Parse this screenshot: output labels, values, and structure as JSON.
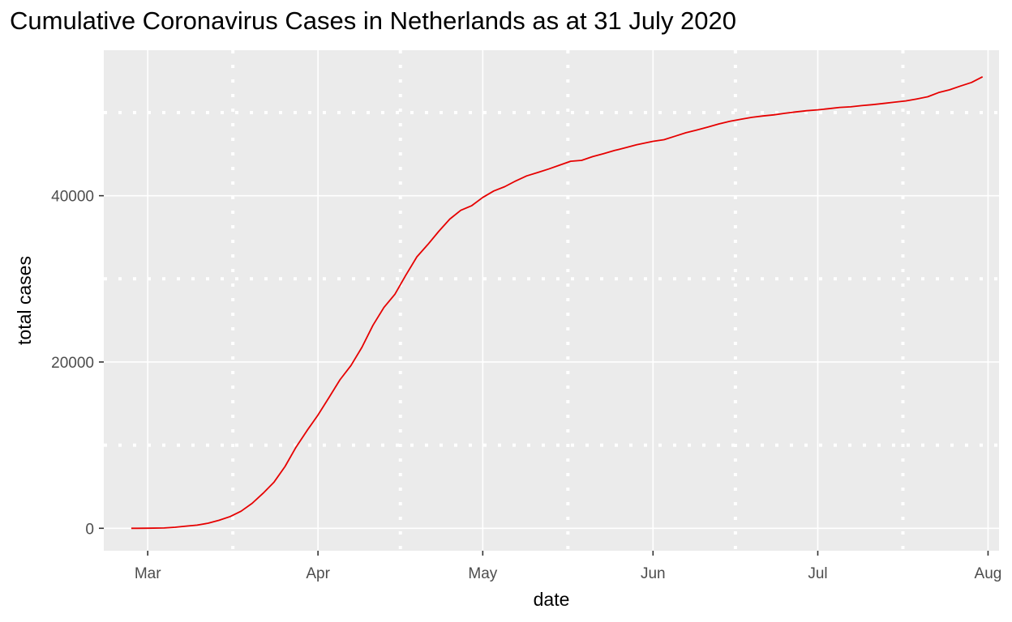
{
  "chart_data": {
    "type": "line",
    "title": "Cumulative Coronavirus Cases in Netherlands as at 31 July 2020",
    "xlabel": "date",
    "ylabel": "total cases",
    "xlim": [
      "2020-02-22",
      "2020-08-03"
    ],
    "ylim": [
      -2700,
      57500
    ],
    "grid": true,
    "x_ticks": [
      {
        "date": "2020-03-01",
        "label": "Mar"
      },
      {
        "date": "2020-04-01",
        "label": "Apr"
      },
      {
        "date": "2020-05-01",
        "label": "May"
      },
      {
        "date": "2020-06-01",
        "label": "Jun"
      },
      {
        "date": "2020-07-01",
        "label": "Jul"
      },
      {
        "date": "2020-08-01",
        "label": "Aug"
      }
    ],
    "y_ticks": [
      {
        "value": 0,
        "label": "0"
      },
      {
        "value": 20000,
        "label": "20000"
      },
      {
        "value": 40000,
        "label": "40000"
      }
    ],
    "series": [
      {
        "color": "#e60000",
        "points": [
          [
            "2020-02-27",
            1
          ],
          [
            "2020-02-28",
            2
          ],
          [
            "2020-03-01",
            10
          ],
          [
            "2020-03-04",
            38
          ],
          [
            "2020-03-06",
            128
          ],
          [
            "2020-03-08",
            265
          ],
          [
            "2020-03-10",
            382
          ],
          [
            "2020-03-12",
            614
          ],
          [
            "2020-03-14",
            959
          ],
          [
            "2020-03-16",
            1413
          ],
          [
            "2020-03-18",
            2051
          ],
          [
            "2020-03-20",
            2994
          ],
          [
            "2020-03-22",
            4204
          ],
          [
            "2020-03-24",
            5560
          ],
          [
            "2020-03-26",
            7431
          ],
          [
            "2020-03-28",
            9762
          ],
          [
            "2020-03-30",
            11750
          ],
          [
            "2020-04-01",
            13614
          ],
          [
            "2020-04-03",
            15723
          ],
          [
            "2020-04-05",
            17851
          ],
          [
            "2020-04-07",
            19580
          ],
          [
            "2020-04-09",
            21762
          ],
          [
            "2020-04-11",
            24413
          ],
          [
            "2020-04-13",
            26551
          ],
          [
            "2020-04-15",
            28153
          ],
          [
            "2020-04-17",
            30449
          ],
          [
            "2020-04-19",
            32655
          ],
          [
            "2020-04-21",
            34134
          ],
          [
            "2020-04-23",
            35729
          ],
          [
            "2020-04-25",
            37190
          ],
          [
            "2020-04-27",
            38245
          ],
          [
            "2020-04-29",
            38802
          ],
          [
            "2020-05-01",
            39791
          ],
          [
            "2020-05-03",
            40571
          ],
          [
            "2020-05-05",
            41087
          ],
          [
            "2020-05-07",
            41774
          ],
          [
            "2020-05-09",
            42382
          ],
          [
            "2020-05-11",
            42788
          ],
          [
            "2020-05-13",
            43211
          ],
          [
            "2020-05-15",
            43681
          ],
          [
            "2020-05-17",
            44141
          ],
          [
            "2020-05-19",
            44249
          ],
          [
            "2020-05-21",
            44700
          ],
          [
            "2020-05-23",
            45064
          ],
          [
            "2020-05-25",
            45445
          ],
          [
            "2020-05-27",
            45768
          ],
          [
            "2020-05-29",
            46126
          ],
          [
            "2020-06-01",
            46545
          ],
          [
            "2020-06-03",
            46733
          ],
          [
            "2020-06-05",
            47152
          ],
          [
            "2020-06-07",
            47574
          ],
          [
            "2020-06-09",
            47903
          ],
          [
            "2020-06-11",
            48251
          ],
          [
            "2020-06-13",
            48640
          ],
          [
            "2020-06-15",
            48948
          ],
          [
            "2020-06-17",
            49204
          ],
          [
            "2020-06-19",
            49426
          ],
          [
            "2020-06-21",
            49593
          ],
          [
            "2020-06-23",
            49722
          ],
          [
            "2020-06-25",
            49914
          ],
          [
            "2020-06-27",
            50074
          ],
          [
            "2020-06-29",
            50223
          ],
          [
            "2020-07-01",
            50335
          ],
          [
            "2020-07-03",
            50470
          ],
          [
            "2020-07-05",
            50621
          ],
          [
            "2020-07-07",
            50694
          ],
          [
            "2020-07-09",
            50833
          ],
          [
            "2020-07-11",
            50957
          ],
          [
            "2020-07-13",
            51099
          ],
          [
            "2020-07-15",
            51252
          ],
          [
            "2020-07-17",
            51403
          ],
          [
            "2020-07-19",
            51638
          ],
          [
            "2020-07-21",
            51897
          ],
          [
            "2020-07-23",
            52404
          ],
          [
            "2020-07-25",
            52732
          ],
          [
            "2020-07-27",
            53198
          ],
          [
            "2020-07-29",
            53621
          ],
          [
            "2020-07-31",
            54301
          ]
        ]
      }
    ]
  }
}
